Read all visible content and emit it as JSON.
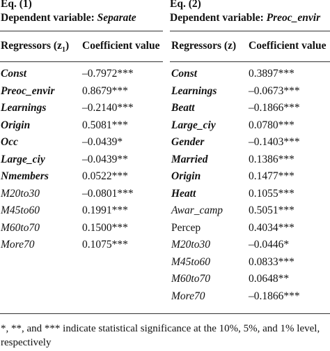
{
  "eq1": {
    "label": "Eq. (1)",
    "dependent_prefix": "Dependent variable: ",
    "dependent_name": "Separate",
    "header_regressors": "Regressors (z",
    "header_regressors_sub": "1",
    "header_regressors_close": ")",
    "header_coef": "Coefficient value",
    "rows": [
      {
        "name": "Const",
        "value": "–0.7972***",
        "style": "bi"
      },
      {
        "name": "Preoc_envir",
        "value": "0.8679***",
        "style": "bi"
      },
      {
        "name": "Learnings",
        "value": "–0.2140***",
        "style": "bi"
      },
      {
        "name": "Origin",
        "value": "0.5081***",
        "style": "bi"
      },
      {
        "name": "Occ",
        "value": "–0.0439*",
        "style": "bi"
      },
      {
        "name": "Large_ciy",
        "value": "–0.0439**",
        "style": "bi"
      },
      {
        "name": "Nmembers",
        "value": "0.0522***",
        "style": "bi"
      },
      {
        "name": "M20to30",
        "value": "–0.0801***",
        "style": "it"
      },
      {
        "name": "M45to60",
        "value": "0.1991***",
        "style": "it"
      },
      {
        "name": "M60to70",
        "value": "0.1500***",
        "style": "it"
      },
      {
        "name": "More70",
        "value": "0.1075***",
        "style": "it"
      }
    ]
  },
  "eq2": {
    "label": "Eq. (2)",
    "dependent_prefix": "Dependent variable: ",
    "dependent_name": "Preoc_envir",
    "header_regressors": "Regressors (z)",
    "header_coef": "Coefficient value",
    "rows": [
      {
        "name": "Const",
        "value": "0.3897***",
        "style": "bi"
      },
      {
        "name": "Learnings",
        "value": "–0.0673***",
        "style": "bi"
      },
      {
        "name": "Beatt",
        "value": "–0.1866***",
        "style": "bi"
      },
      {
        "name": "Large_ciy",
        "value": "0.0780***",
        "style": "bi"
      },
      {
        "name": "Gender",
        "value": "–0.1403***",
        "style": "bi"
      },
      {
        "name": "Married",
        "value": "0.1386***",
        "style": "bi"
      },
      {
        "name": "Origin",
        "value": "0.1477***",
        "style": "bi"
      },
      {
        "name": "Heatt",
        "value": "0.1055***",
        "style": "bi"
      },
      {
        "name": "Awar_camp",
        "value": "0.5051***",
        "style": "it"
      },
      {
        "name": "Percep",
        "value": "0.4034***",
        "style": "rm"
      },
      {
        "name": "M20to30",
        "value": "–0.0446*",
        "style": "it"
      },
      {
        "name": "M45to60",
        "value": "0.0833***",
        "style": "it"
      },
      {
        "name": "M60to70",
        "value": "0.0648**",
        "style": "it"
      },
      {
        "name": "More70",
        "value": "–0.1866***",
        "style": "it"
      }
    ]
  },
  "footnote": "*, **, and *** indicate statistical significance at the 10%, 5%, and 1% level, respectively"
}
